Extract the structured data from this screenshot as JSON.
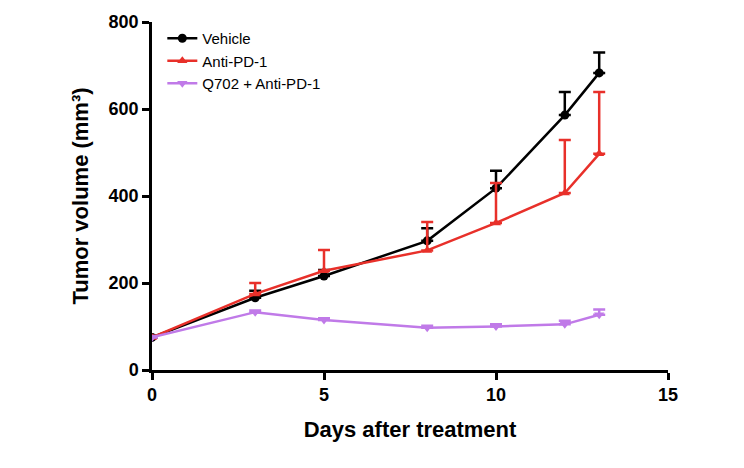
{
  "chart_data": {
    "type": "line",
    "x_label": "Days after treatment",
    "y_label": "Tumor volume (mm³)",
    "x": [
      0,
      3,
      5,
      8,
      10,
      12,
      13
    ],
    "series": [
      {
        "name": "Vehicle",
        "color": "#000000",
        "marker": "circle",
        "values": [
          75,
          166,
          216,
          297,
          418,
          586,
          683
        ],
        "errors": [
          4,
          16,
          14,
          29,
          40,
          53,
          47
        ]
      },
      {
        "name": "Anti-PD-1",
        "color": "#e8302a",
        "marker": "triangle-up",
        "values": [
          75,
          175,
          228,
          275,
          338,
          407,
          497
        ],
        "errors": [
          4,
          25,
          48,
          65,
          92,
          122,
          142
        ]
      },
      {
        "name": "Q702 + Anti-PD-1",
        "color": "#c07ae8",
        "marker": "triangle-down",
        "values": [
          75,
          133,
          115,
          97,
          100,
          105,
          127
        ],
        "errors": [
          3,
          4,
          4,
          5,
          5,
          8,
          12
        ]
      }
    ],
    "xlim": [
      0,
      15
    ],
    "xticks": [
      0,
      5,
      10,
      15
    ],
    "ylim": [
      0,
      800
    ],
    "yticks": [
      0,
      200,
      400,
      600,
      800
    ],
    "grid": false,
    "legend": "top-left"
  }
}
